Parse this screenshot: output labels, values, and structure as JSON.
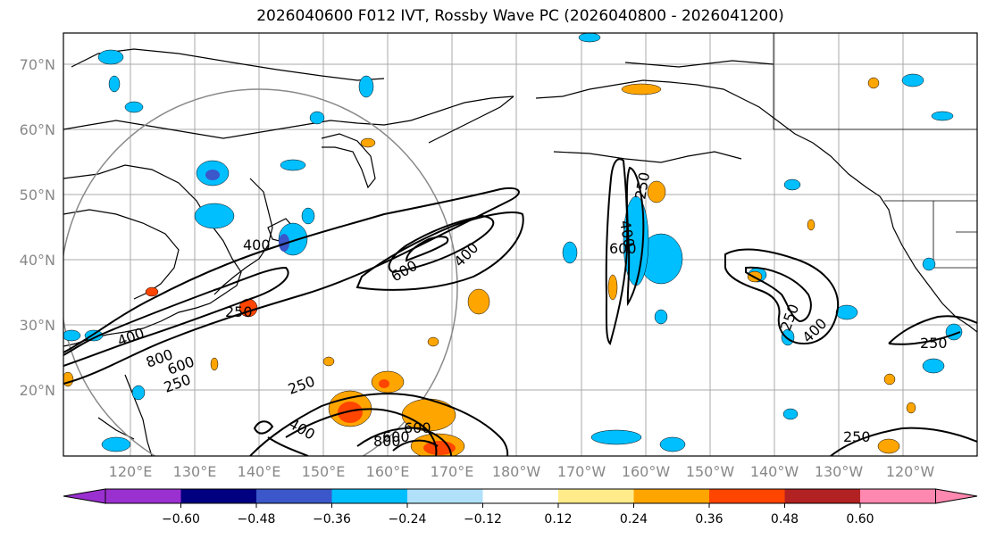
{
  "title": "2026040600 F012 IVT, Rossby Wave PC (2026040800 - 2026041200)",
  "lat_labels": [
    "70°N",
    "60°N",
    "50°N",
    "40°N",
    "30°N",
    "20°N"
  ],
  "lon_labels": [
    "120°E",
    "130°E",
    "140°E",
    "150°E",
    "160°E",
    "170°E",
    "180°W",
    "170°W",
    "160°W",
    "150°W",
    "140°W",
    "130°W",
    "120°W"
  ],
  "colorbar": {
    "colors": [
      "#9b30d0",
      "#000080",
      "#3b57c9",
      "#00bfff",
      "#b0e0fa",
      "#ffffff",
      "#ffeb8a",
      "#ffa500",
      "#ff4500",
      "#b22222",
      "#ff88b0"
    ],
    "tick_labels": [
      "−0.60",
      "−0.48",
      "−0.36",
      "−0.24",
      "−0.12",
      "0.12",
      "0.24",
      "0.36",
      "0.48",
      "0.60"
    ]
  },
  "contour_labels": [
    "400",
    "600",
    "400",
    "800",
    "600",
    "250",
    "250",
    "600",
    "400",
    "400",
    "600",
    "250",
    "250",
    "400",
    "250",
    "250",
    "400",
    "800",
    "600",
    "250"
  ]
}
